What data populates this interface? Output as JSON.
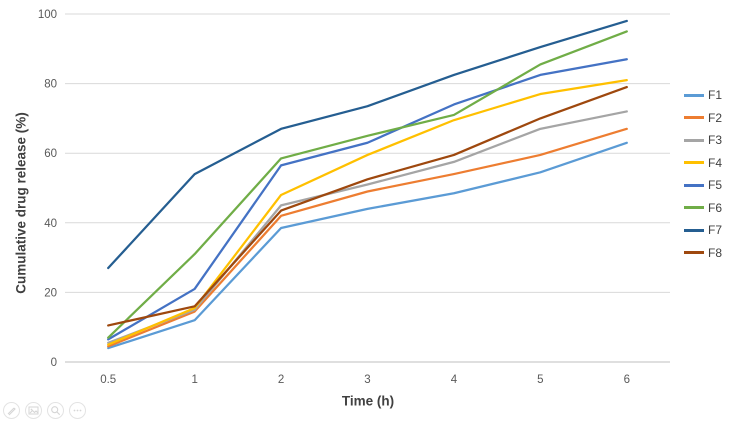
{
  "chart_data": {
    "type": "line",
    "title": "",
    "xlabel": "Time (h)",
    "ylabel": "Cumulative drug release (%)",
    "categories": [
      "0.5",
      "1",
      "2",
      "3",
      "4",
      "5",
      "6"
    ],
    "ylim": [
      0,
      100
    ],
    "yticks": [
      0,
      20,
      40,
      60,
      80,
      100
    ],
    "grid": true,
    "gridline_color": "#D9D9D9",
    "axis_line_color": "#BFBFBF",
    "tick_label_color": "#595959",
    "axis_title_color": "#404040",
    "legend_position": "right",
    "series": [
      {
        "name": "F1",
        "color": "#5B9BD5",
        "values": [
          4,
          12,
          38.5,
          44,
          48.5,
          54.5,
          63
        ]
      },
      {
        "name": "F2",
        "color": "#ED7D31",
        "values": [
          4.5,
          14.5,
          42,
          49,
          54,
          59.5,
          67
        ]
      },
      {
        "name": "F3",
        "color": "#A5A5A5",
        "values": [
          5.5,
          15,
          45,
          51,
          57.5,
          67,
          72
        ]
      },
      {
        "name": "F4",
        "color": "#FFC000",
        "values": [
          5,
          15.5,
          48,
          59.5,
          69.5,
          77,
          81
        ]
      },
      {
        "name": "F5",
        "color": "#4472C4",
        "values": [
          6.5,
          21,
          56.5,
          63,
          74,
          82.5,
          87
        ]
      },
      {
        "name": "F6",
        "color": "#70AD47",
        "values": [
          7,
          31,
          58.5,
          65,
          71,
          85.5,
          95
        ]
      },
      {
        "name": "F7",
        "color": "#255E91",
        "values": [
          27,
          54,
          67,
          73.5,
          82.5,
          90.5,
          98
        ]
      },
      {
        "name": "F8",
        "color": "#9E480E",
        "values": [
          10.5,
          16,
          43.5,
          52.5,
          59.5,
          70,
          79
        ]
      }
    ]
  },
  "toolbar": {
    "buttons": [
      {
        "icon": "edit-icon"
      },
      {
        "icon": "image-icon"
      },
      {
        "icon": "zoom-icon"
      },
      {
        "icon": "more-icon"
      }
    ]
  }
}
